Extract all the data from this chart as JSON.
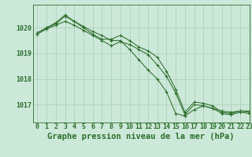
{
  "title": "Graphe pression niveau de la mer (hPa)",
  "bg_color": "#cce8d8",
  "grid_color": "#aaccbb",
  "line_color": "#2d6e2d",
  "xlim": [
    -0.5,
    23
  ],
  "ylim": [
    1016.3,
    1020.9
  ],
  "yticks": [
    1017,
    1018,
    1019,
    1020
  ],
  "xticks": [
    0,
    1,
    2,
    3,
    4,
    5,
    6,
    7,
    8,
    9,
    10,
    11,
    12,
    13,
    14,
    15,
    16,
    17,
    18,
    19,
    20,
    21,
    22,
    23
  ],
  "series": [
    [
      1019.8,
      1020.0,
      1020.15,
      1020.45,
      1020.25,
      1020.05,
      1019.85,
      1019.7,
      1019.5,
      1019.5,
      1019.15,
      1018.75,
      1018.35,
      1018.0,
      1017.5,
      1016.65,
      1016.55,
      1016.8,
      1016.95,
      1016.85,
      1016.75,
      1016.7,
      1016.75,
      1016.75
    ],
    [
      1019.8,
      1020.0,
      1020.2,
      1020.5,
      1020.25,
      1020.0,
      1019.75,
      1019.55,
      1019.55,
      1019.7,
      1019.5,
      1019.25,
      1019.1,
      1018.85,
      1018.3,
      1017.6,
      1016.7,
      1017.1,
      1017.05,
      1016.95,
      1016.7,
      1016.65,
      1016.75,
      1016.7
    ],
    [
      1019.75,
      1019.95,
      1020.1,
      1020.25,
      1020.1,
      1019.9,
      1019.7,
      1019.5,
      1019.3,
      1019.45,
      1019.35,
      1019.15,
      1018.95,
      1018.55,
      1018.1,
      1017.45,
      1016.6,
      1017.0,
      1016.95,
      1016.85,
      1016.65,
      1016.6,
      1016.7,
      1016.65
    ]
  ],
  "tick_fontsize": 6,
  "label_fontsize": 7.5,
  "title_color": "#2d6e2d"
}
